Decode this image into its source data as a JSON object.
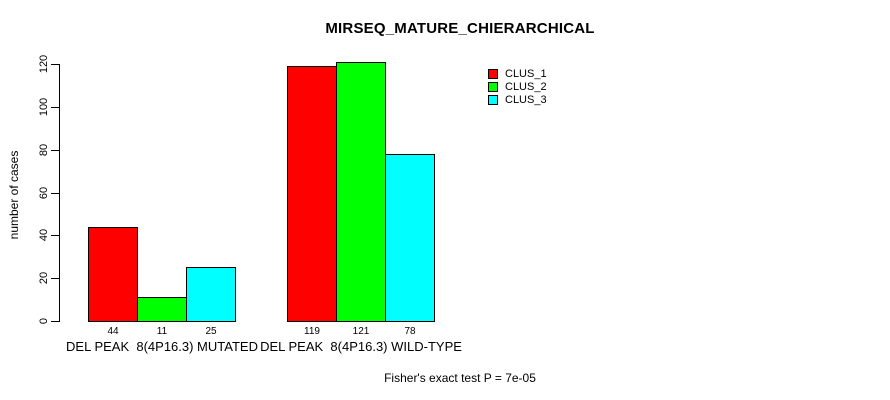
{
  "title": "MIRSEQ_MATURE_CHIERARCHICAL",
  "footer": "Fisher's exact test P = 7e-05",
  "chart_data": {
    "type": "bar",
    "title": "MIRSEQ_MATURE_CHIERARCHICAL",
    "xlabel": "",
    "ylabel": "number of cases",
    "ylim": [
      0,
      120
    ],
    "yticks": [
      0,
      20,
      40,
      60,
      80,
      100,
      120
    ],
    "grid": false,
    "legend_position": "top-right-inside",
    "categories": [
      "DEL PEAK  8(4P16.3) MUTATED",
      "DEL PEAK  8(4P16.3) WILD-TYPE"
    ],
    "series": [
      {
        "name": "CLUS_1",
        "color": "#ff0000",
        "values": [
          44,
          119
        ]
      },
      {
        "name": "CLUS_2",
        "color": "#00ff00",
        "values": [
          11,
          121
        ]
      },
      {
        "name": "CLUS_3",
        "color": "#00ffff",
        "values": [
          25,
          78
        ]
      }
    ],
    "bar_value_labels": [
      [
        "44",
        "11",
        "25"
      ],
      [
        "119",
        "121",
        "78"
      ]
    ],
    "annotation": "Fisher's exact test P = 7e-05",
    "colors": {
      "background": "#ffffff",
      "axis": "#000000",
      "text": "#000000"
    }
  }
}
